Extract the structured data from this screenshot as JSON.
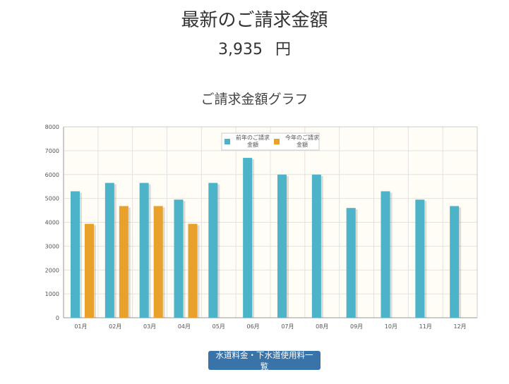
{
  "header": {
    "title": "最新のご請求金額",
    "amount": "3,935",
    "unit": "円"
  },
  "graph": {
    "title": "ご請求金額グラフ"
  },
  "button": {
    "label": "水道料金・下水道使用料一覧"
  },
  "chart_data": {
    "type": "bar",
    "categories": [
      "01月",
      "02月",
      "03月",
      "04月",
      "05月",
      "06月",
      "07月",
      "08月",
      "09月",
      "10月",
      "11月",
      "12月"
    ],
    "series": [
      {
        "name": "前年のご請求金額",
        "legend_lines": [
          "前年のご請求",
          "金額"
        ],
        "color": "#4db3c8",
        "values": [
          5300,
          5650,
          5650,
          4950,
          5650,
          6700,
          6000,
          6000,
          4600,
          5300,
          4950,
          4680
        ]
      },
      {
        "name": "今年のご請求金額",
        "legend_lines": [
          "今年のご請求",
          "金額"
        ],
        "color": "#e8a22b",
        "values": [
          3935,
          4680,
          4680,
          3935,
          null,
          null,
          null,
          null,
          null,
          null,
          null,
          null
        ]
      }
    ],
    "ylim": [
      0,
      8000
    ],
    "yticks": [
      0,
      1000,
      2000,
      3000,
      4000,
      5000,
      6000,
      7000,
      8000
    ],
    "grid": true,
    "legend_position": "top-center"
  }
}
